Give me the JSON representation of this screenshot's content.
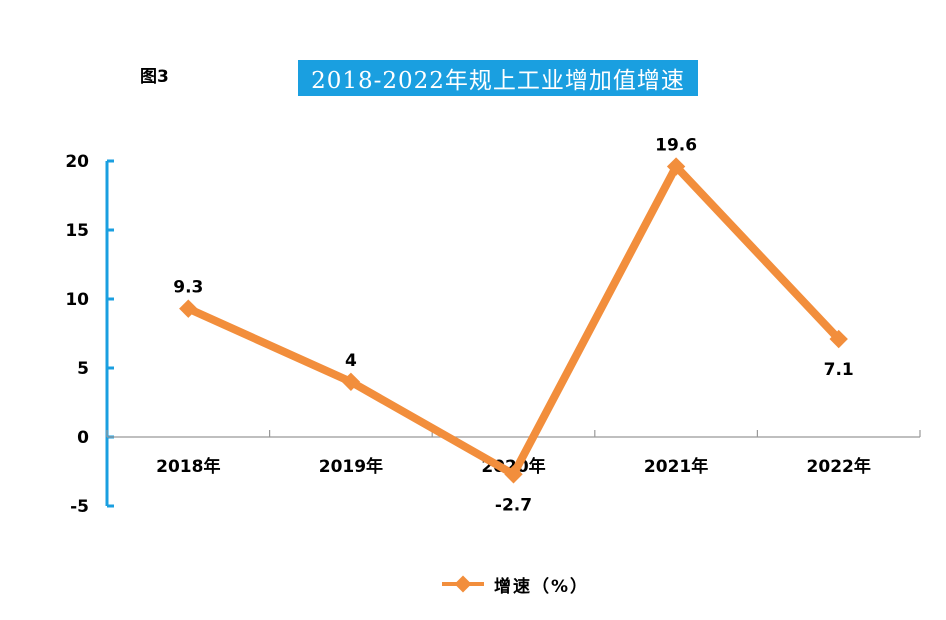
{
  "figure_label": "图3",
  "chart_data": {
    "type": "line",
    "title": "2018-2022年规上工业增加值增速",
    "categories": [
      "2018年",
      "2019年",
      "2020年",
      "2021年",
      "2022年"
    ],
    "series": [
      {
        "name": "增速（%）",
        "values": [
          9.3,
          4,
          -2.7,
          19.6,
          7.1
        ]
      }
    ],
    "data_labels": [
      "9.3",
      "4",
      "-2.7",
      "19.6",
      "7.1"
    ],
    "yticks": [
      -5,
      0,
      5,
      10,
      15,
      20
    ],
    "ylim": [
      -5,
      20
    ],
    "grid": false,
    "legend_position": "bottom",
    "colors": {
      "line": "#f28e3c",
      "y_axis": "#1a9fe0",
      "x_axis": "#999999",
      "title_bg": "#1a9fe0"
    }
  }
}
